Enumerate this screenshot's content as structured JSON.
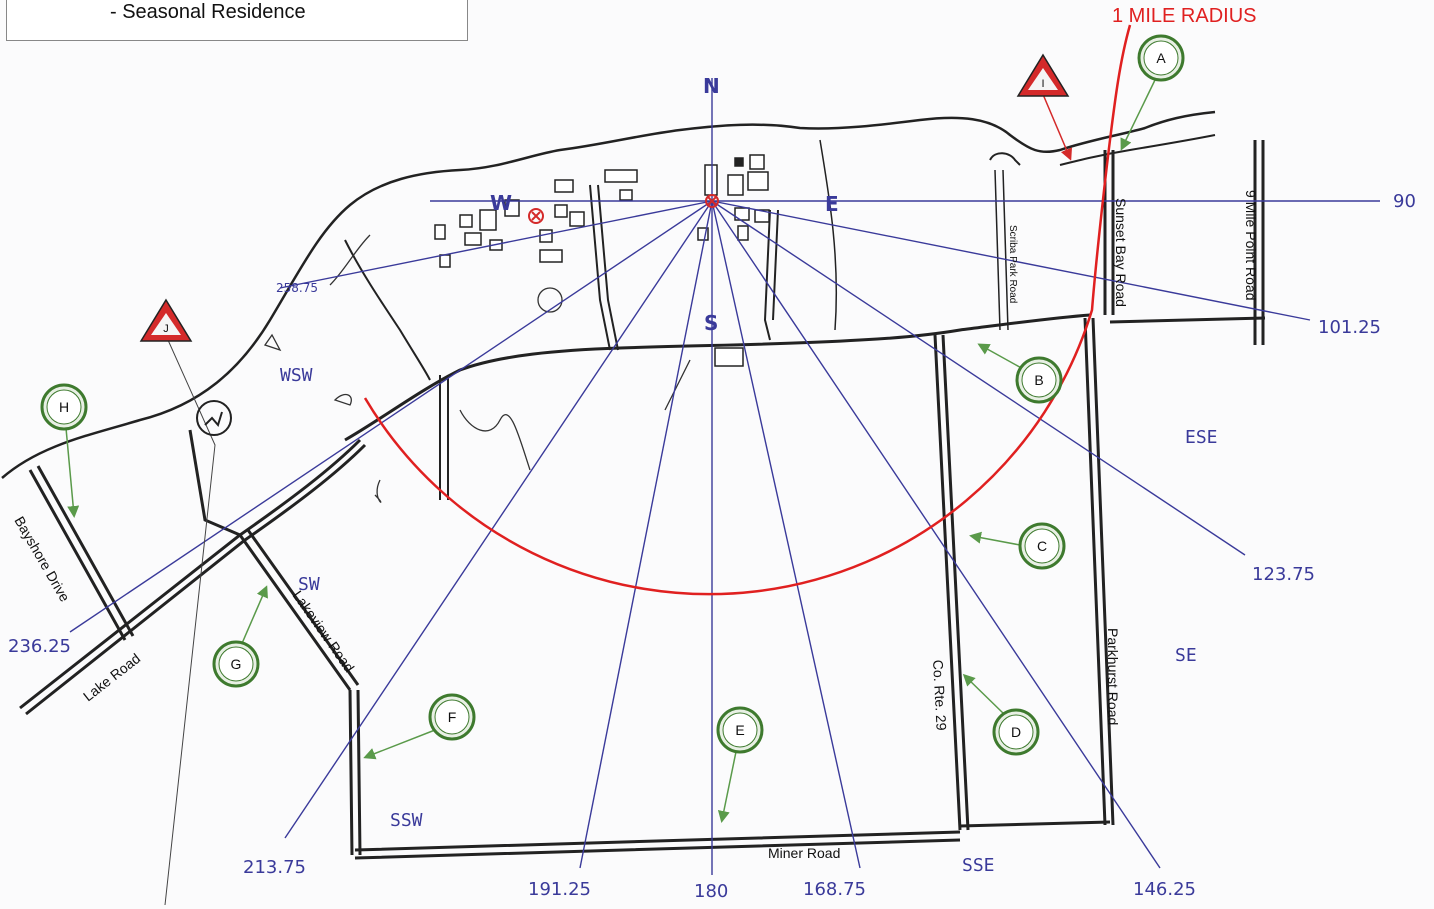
{
  "legend": {
    "seasonal_residence_label": "-  Seasonal Residence"
  },
  "radius_label": "1 MILE RADIUS",
  "cardinals": {
    "n": "N",
    "s": "S",
    "e": "E",
    "w": "W"
  },
  "sectors": {
    "wsw": "WSW",
    "sw": "SW",
    "ssw": "SSW",
    "sse": "SSE",
    "se": "SE",
    "ese": "ESE"
  },
  "bearings": {
    "b90": "90",
    "b101": "101.25",
    "b123": "123.75",
    "b146": "146.25",
    "b168": "168.75",
    "b180": "180",
    "b191": "191.25",
    "b213": "213.75",
    "b236": "236.25",
    "b258": "258.75"
  },
  "roads": {
    "nine_mile": "9 Mile Point Road",
    "sunset_bay": "Sunset Bay Road",
    "scriba_park": "Scriba Park Road",
    "parkhurst": "Parkhurst Road",
    "co_rte": "Co. Rte. 29",
    "miner": "Miner Road",
    "lakeview": "Lakeview Road",
    "lake": "Lake Road",
    "bayshore": "Bayshore Drive"
  },
  "markers": {
    "green": [
      "A",
      "B",
      "C",
      "D",
      "E",
      "F",
      "G",
      "H"
    ],
    "red": [
      "I",
      "J"
    ]
  },
  "colors": {
    "ray": "#3a3a9a",
    "radius": "#e02020",
    "marker_ring": "#3e7a2e",
    "triangle": "#d42a2a",
    "road": "#222222"
  }
}
